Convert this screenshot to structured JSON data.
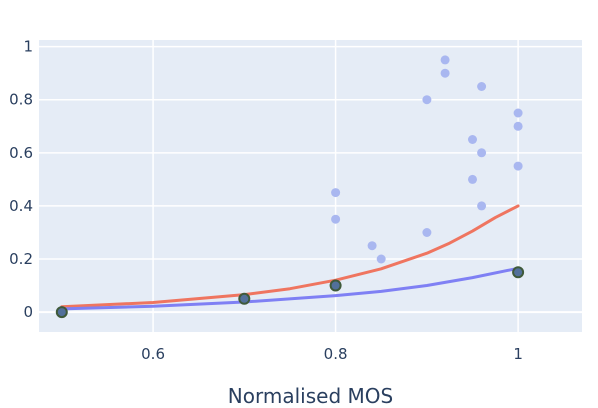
{
  "chart_data": {
    "type": "scatter",
    "title": "",
    "xlabel": "Normalised MOS",
    "ylabel": "",
    "xlim": [
      0.475,
      1.07
    ],
    "ylim": [
      -0.075,
      1.025
    ],
    "x_ticks": [
      0.6,
      0.8,
      1
    ],
    "x_tick_labels": [
      "0.6",
      "0.8",
      "1"
    ],
    "y_ticks": [
      0,
      0.2,
      0.4,
      0.6,
      0.8,
      1
    ],
    "y_tick_labels": [
      "0",
      "0.2",
      "0.4",
      "0.6",
      "0.8",
      "1"
    ],
    "grid": true,
    "legend": "none",
    "series": [
      {
        "kind": "scatter",
        "color": "#a9b7f0",
        "points": [
          [
            0.8,
            0.45
          ],
          [
            0.8,
            0.35
          ],
          [
            0.84,
            0.25
          ],
          [
            0.85,
            0.2
          ],
          [
            0.9,
            0.8
          ],
          [
            0.9,
            0.3
          ],
          [
            0.92,
            0.95
          ],
          [
            0.92,
            0.9
          ],
          [
            0.95,
            0.65
          ],
          [
            0.95,
            0.5
          ],
          [
            0.96,
            0.85
          ],
          [
            0.96,
            0.6
          ],
          [
            0.96,
            0.4
          ],
          [
            1,
            0.75
          ],
          [
            1,
            0.7
          ],
          [
            1,
            0.55
          ]
        ]
      },
      {
        "kind": "line",
        "color": "#ef7560",
        "points": [
          [
            0.5,
            0.02
          ],
          [
            0.6,
            0.036
          ],
          [
            0.7,
            0.066
          ],
          [
            0.75,
            0.088
          ],
          [
            0.8,
            0.12
          ],
          [
            0.85,
            0.163
          ],
          [
            0.9,
            0.222
          ],
          [
            0.925,
            0.26
          ],
          [
            0.95,
            0.305
          ],
          [
            0.975,
            0.356
          ],
          [
            1,
            0.4
          ]
        ]
      },
      {
        "kind": "line",
        "color": "#7f80f4",
        "points": [
          [
            0.5,
            0.012
          ],
          [
            0.6,
            0.022
          ],
          [
            0.7,
            0.038
          ],
          [
            0.8,
            0.062
          ],
          [
            0.85,
            0.078
          ],
          [
            0.9,
            0.1
          ],
          [
            0.95,
            0.13
          ],
          [
            1,
            0.165
          ]
        ]
      },
      {
        "kind": "scatter",
        "color": "#52709a",
        "stroke": "#3f5a3a",
        "points": [
          [
            0.5,
            0.0
          ],
          [
            0.7,
            0.05
          ],
          [
            0.8,
            0.1
          ],
          [
            1,
            0.15
          ]
        ]
      }
    ]
  }
}
